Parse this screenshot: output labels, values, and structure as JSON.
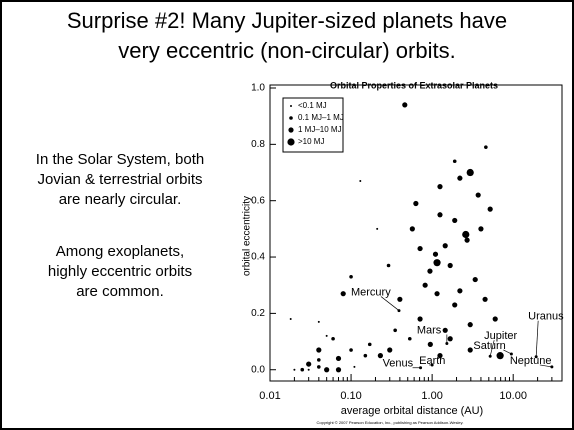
{
  "slide": {
    "title_lines": [
      "Surprise #2! Many Jupiter-sized planets have",
      "very eccentric (non-circular) orbits."
    ],
    "left_text_1": [
      "In the Solar System, both",
      "Jovian & terrestrial orbits",
      "are nearly circular."
    ],
    "left_text_2": [
      "Among exoplanets,",
      "highly eccentric orbits",
      "are common."
    ],
    "copyright": "Copyright © 2007 Pearson Education, Inc., publishing as Pearson Addison-Wesley."
  },
  "chart_data": {
    "type": "scatter",
    "title": "Orbital Properties of Extrasolar Planets",
    "x_label": "average orbital distance (AU)",
    "y_label": "orbital eccentricity",
    "xlog": true,
    "xlim": [
      0.01,
      40
    ],
    "ylim": [
      -0.04,
      1.0
    ],
    "xticks": [
      {
        "value": 0.01,
        "label": "0.01"
      },
      {
        "value": 0.1,
        "label": "0.10"
      },
      {
        "value": 1,
        "label": "1.00"
      },
      {
        "value": 10,
        "label": "10.00"
      }
    ],
    "yticks": [
      {
        "value": 0,
        "label": "0.0"
      },
      {
        "value": 0.2,
        "label": "0.2"
      },
      {
        "value": 0.4,
        "label": "0.4"
      },
      {
        "value": 0.6,
        "label": "0.6"
      },
      {
        "value": 0.8,
        "label": "0.8"
      },
      {
        "value": 1,
        "label": "1.0"
      }
    ],
    "legend": "upper left",
    "series": [
      {
        "name": "<0.1 MJ",
        "color": "#000000",
        "x": [
          0.02,
          0.018,
          0.03,
          0.04,
          0.05,
          0.11,
          0.13,
          0.21
        ],
        "y": [
          0.0,
          0.18,
          0.0,
          0.17,
          0.12,
          0.01,
          0.67,
          0.5
        ]
      },
      {
        "name": "0.1 MJ–1 MJ",
        "color": "#000000",
        "x": [
          0.025,
          0.04,
          0.04,
          0.06,
          0.1,
          0.15,
          0.17,
          0.29,
          0.35,
          0.53,
          0.1,
          4.6,
          1.9
        ],
        "y": [
          0.0,
          0.01,
          0.035,
          0.11,
          0.07,
          0.05,
          0.09,
          0.37,
          0.14,
          0.11,
          0.33,
          0.79,
          0.74
        ]
      },
      {
        "name": "1 MJ–10 MJ",
        "color": "#000000",
        "x": [
          0.46,
          0.08,
          0.63,
          1.25,
          2.2,
          3.7,
          5.2,
          4.0,
          2.7,
          1.25,
          1.45,
          1.1,
          0.94,
          0.82,
          1.15,
          1.67,
          2.2,
          1.9,
          3.4,
          4.5,
          6.0,
          2.95,
          1.45,
          0.71,
          0.4,
          0.3,
          0.23,
          0.07,
          0.05,
          0.07,
          0.03,
          0.95,
          2.95,
          1.25,
          1.67,
          1.9,
          0.71,
          0.57,
          0.04
        ],
        "y": [
          0.94,
          0.27,
          0.59,
          0.65,
          0.68,
          0.62,
          0.57,
          0.5,
          0.46,
          0.55,
          0.44,
          0.41,
          0.35,
          0.3,
          0.27,
          0.37,
          0.28,
          0.23,
          0.32,
          0.25,
          0.18,
          0.16,
          0.14,
          0.18,
          0.25,
          0.07,
          0.05,
          0.04,
          0.0,
          0.0,
          0.02,
          0.09,
          0.07,
          0.05,
          0.11,
          0.53,
          0.43,
          0.5,
          0.07
        ]
      },
      {
        "name": ">10 MJ",
        "color": "#000000",
        "x": [
          2.95,
          2.6,
          6.9,
          1.15
        ],
        "y": [
          0.7,
          0.48,
          0.05,
          0.38
        ]
      }
    ],
    "solar_planets": [
      {
        "name": "Mercury",
        "x": 0.39,
        "y": 0.21
      },
      {
        "name": "Venus",
        "x": 0.72,
        "y": 0.007
      },
      {
        "name": "Earth",
        "x": 1.0,
        "y": 0.017
      },
      {
        "name": "Mars",
        "x": 1.52,
        "y": 0.093
      },
      {
        "name": "Jupiter",
        "x": 5.2,
        "y": 0.048
      },
      {
        "name": "Saturn",
        "x": 9.5,
        "y": 0.056
      },
      {
        "name": "Uranus",
        "x": 19.2,
        "y": 0.046
      },
      {
        "name": "Neptune",
        "x": 30,
        "y": 0.01
      }
    ]
  }
}
